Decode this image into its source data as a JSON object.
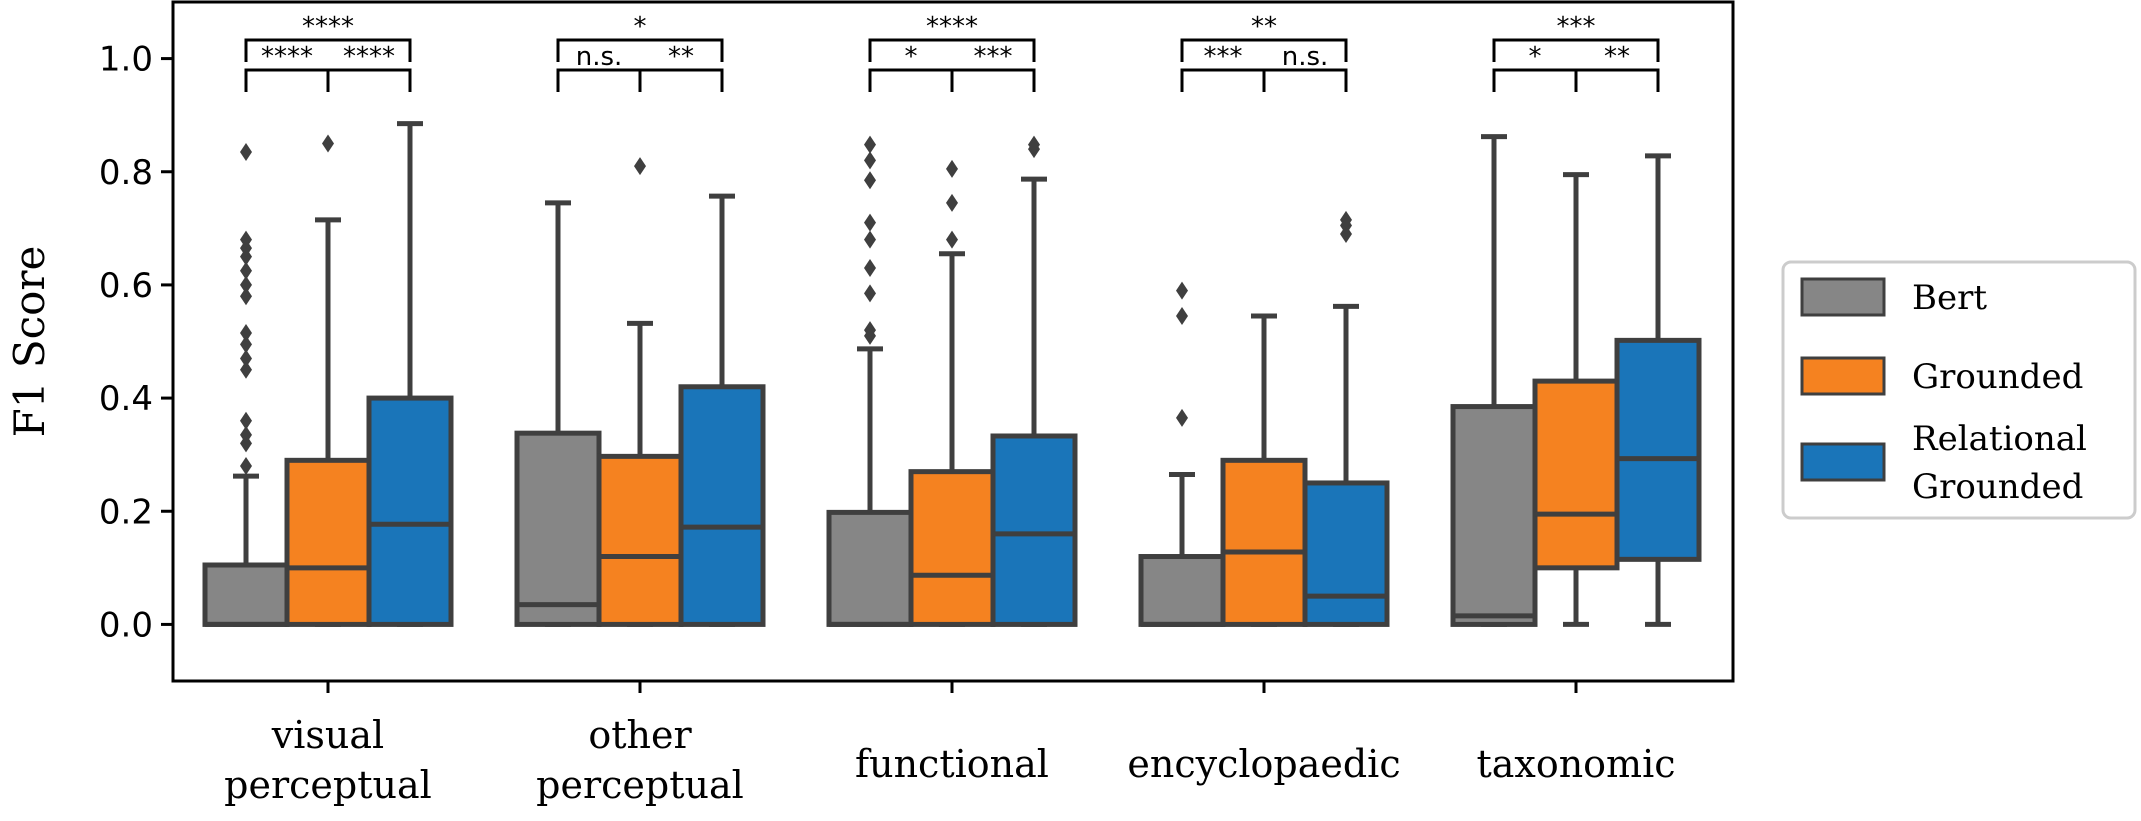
{
  "chart_data": {
    "type": "box",
    "ylabel": "F1 Score",
    "ylim": [
      -0.1,
      1.1
    ],
    "yticks": [
      "0.0",
      "0.2",
      "0.4",
      "0.6",
      "0.8",
      "1.0"
    ],
    "categories": [
      [
        "visual",
        "perceptual"
      ],
      [
        "other",
        "perceptual"
      ],
      [
        "functional"
      ],
      [
        "encyclopaedic"
      ],
      [
        "taxonomic"
      ]
    ],
    "legend": {
      "position": "right",
      "entries": [
        "Bert",
        "Grounded",
        [
          "Relational",
          "Grounded"
        ]
      ]
    },
    "colors": {
      "Bert": "#868686",
      "Grounded": "#f58220",
      "Relational Grounded": "#1a75b9",
      "edge": "#3f3f3f",
      "outlier": "#3f3f3f"
    },
    "series": [
      {
        "name": "Bert",
        "boxes": [
          {
            "min": 0.0,
            "q1": 0.0,
            "median": 0.0,
            "q3": 0.105,
            "max": 0.262,
            "outliers": [
              0.28,
              0.32,
              0.335,
              0.36,
              0.45,
              0.47,
              0.495,
              0.515,
              0.58,
              0.6,
              0.625,
              0.65,
              0.665,
              0.68,
              0.835
            ]
          },
          {
            "min": 0.0,
            "q1": 0.0,
            "median": 0.035,
            "q3": 0.338,
            "max": 0.745,
            "outliers": []
          },
          {
            "min": 0.0,
            "q1": 0.0,
            "median": 0.0,
            "q3": 0.198,
            "max": 0.487,
            "outliers": [
              0.51,
              0.52,
              0.585,
              0.63,
              0.68,
              0.71,
              0.785,
              0.82,
              0.848
            ]
          },
          {
            "min": 0.0,
            "q1": 0.0,
            "median": 0.0,
            "q3": 0.12,
            "max": 0.265,
            "outliers": [
              0.365,
              0.545,
              0.59
            ]
          },
          {
            "min": 0.0,
            "q1": 0.0,
            "median": 0.015,
            "q3": 0.385,
            "max": 0.862,
            "outliers": []
          }
        ]
      },
      {
        "name": "Grounded",
        "boxes": [
          {
            "min": 0.0,
            "q1": 0.0,
            "median": 0.1,
            "q3": 0.29,
            "max": 0.715,
            "outliers": [
              0.85
            ]
          },
          {
            "min": 0.0,
            "q1": 0.0,
            "median": 0.12,
            "q3": 0.297,
            "max": 0.532,
            "outliers": [
              0.81
            ]
          },
          {
            "min": 0.0,
            "q1": 0.0,
            "median": 0.087,
            "q3": 0.27,
            "max": 0.655,
            "outliers": [
              0.68,
              0.745,
              0.805
            ]
          },
          {
            "min": 0.0,
            "q1": 0.0,
            "median": 0.128,
            "q3": 0.29,
            "max": 0.545,
            "outliers": []
          },
          {
            "min": 0.0,
            "q1": 0.1,
            "median": 0.195,
            "q3": 0.43,
            "max": 0.795,
            "outliers": []
          }
        ]
      },
      {
        "name": "Relational Grounded",
        "boxes": [
          {
            "min": 0.0,
            "q1": 0.0,
            "median": 0.177,
            "q3": 0.4,
            "max": 0.885,
            "outliers": []
          },
          {
            "min": 0.0,
            "q1": 0.0,
            "median": 0.172,
            "q3": 0.42,
            "max": 0.757,
            "outliers": []
          },
          {
            "min": 0.0,
            "q1": 0.0,
            "median": 0.16,
            "q3": 0.333,
            "max": 0.787,
            "outliers": [
              0.84,
              0.848
            ]
          },
          {
            "min": 0.0,
            "q1": 0.0,
            "median": 0.05,
            "q3": 0.25,
            "max": 0.562,
            "outliers": [
              0.69,
              0.705,
              0.715
            ]
          },
          {
            "min": 0.0,
            "q1": 0.115,
            "median": 0.293,
            "q3": 0.502,
            "max": 0.828,
            "outliers": []
          }
        ]
      }
    ],
    "significance": [
      [
        {
          "from": 0,
          "to": 2,
          "label": "****"
        },
        {
          "from": 0,
          "to": 1,
          "label": "****"
        },
        {
          "from": 1,
          "to": 2,
          "label": "****"
        }
      ],
      [
        {
          "from": 0,
          "to": 2,
          "label": "*"
        },
        {
          "from": 0,
          "to": 1,
          "label": "n.s."
        },
        {
          "from": 1,
          "to": 2,
          "label": "**"
        }
      ],
      [
        {
          "from": 0,
          "to": 2,
          "label": "****"
        },
        {
          "from": 0,
          "to": 1,
          "label": "*"
        },
        {
          "from": 1,
          "to": 2,
          "label": "***"
        }
      ],
      [
        {
          "from": 0,
          "to": 2,
          "label": "**"
        },
        {
          "from": 0,
          "to": 1,
          "label": "***"
        },
        {
          "from": 1,
          "to": 2,
          "label": "n.s."
        }
      ],
      [
        {
          "from": 0,
          "to": 2,
          "label": "***"
        },
        {
          "from": 0,
          "to": 1,
          "label": "*"
        },
        {
          "from": 1,
          "to": 2,
          "label": "**"
        }
      ]
    ]
  }
}
